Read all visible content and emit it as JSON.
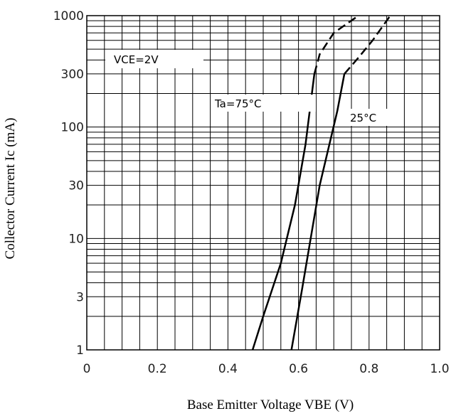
{
  "chart_data": {
    "type": "line",
    "title": "",
    "xlabel": "Base Emitter Voltage VBE (V)",
    "ylabel": "Collector Current Ic (mA)",
    "xlim": [
      0,
      1.0
    ],
    "ylim": [
      1,
      1000
    ],
    "yscale": "log",
    "grid": true,
    "x_ticks": [
      "0",
      "0.2",
      "0.4",
      "0.6",
      "0.8",
      "1.0"
    ],
    "y_ticks": [
      "1",
      "3",
      "10",
      "30",
      "100",
      "300",
      "1000"
    ],
    "annotations": {
      "condition": "VCE=2V",
      "series_labels": [
        "Ta=75°C",
        "25°C"
      ]
    },
    "series": [
      {
        "name": "Ta=75°C",
        "solid": [
          [
            0.47,
            1
          ],
          [
            0.5,
            2
          ],
          [
            0.55,
            6
          ],
          [
            0.59,
            20
          ],
          [
            0.62,
            70
          ],
          [
            0.645,
            300
          ]
        ],
        "dashed": [
          [
            0.645,
            300
          ],
          [
            0.66,
            450
          ],
          [
            0.7,
            700
          ],
          [
            0.77,
            1000
          ]
        ]
      },
      {
        "name": "25°C",
        "solid": [
          [
            0.58,
            1
          ],
          [
            0.61,
            3.5
          ],
          [
            0.66,
            30
          ],
          [
            0.71,
            140
          ],
          [
            0.73,
            300
          ]
        ],
        "dashed": [
          [
            0.73,
            300
          ],
          [
            0.77,
            420
          ],
          [
            0.81,
            600
          ],
          [
            0.86,
            1000
          ]
        ]
      }
    ]
  }
}
